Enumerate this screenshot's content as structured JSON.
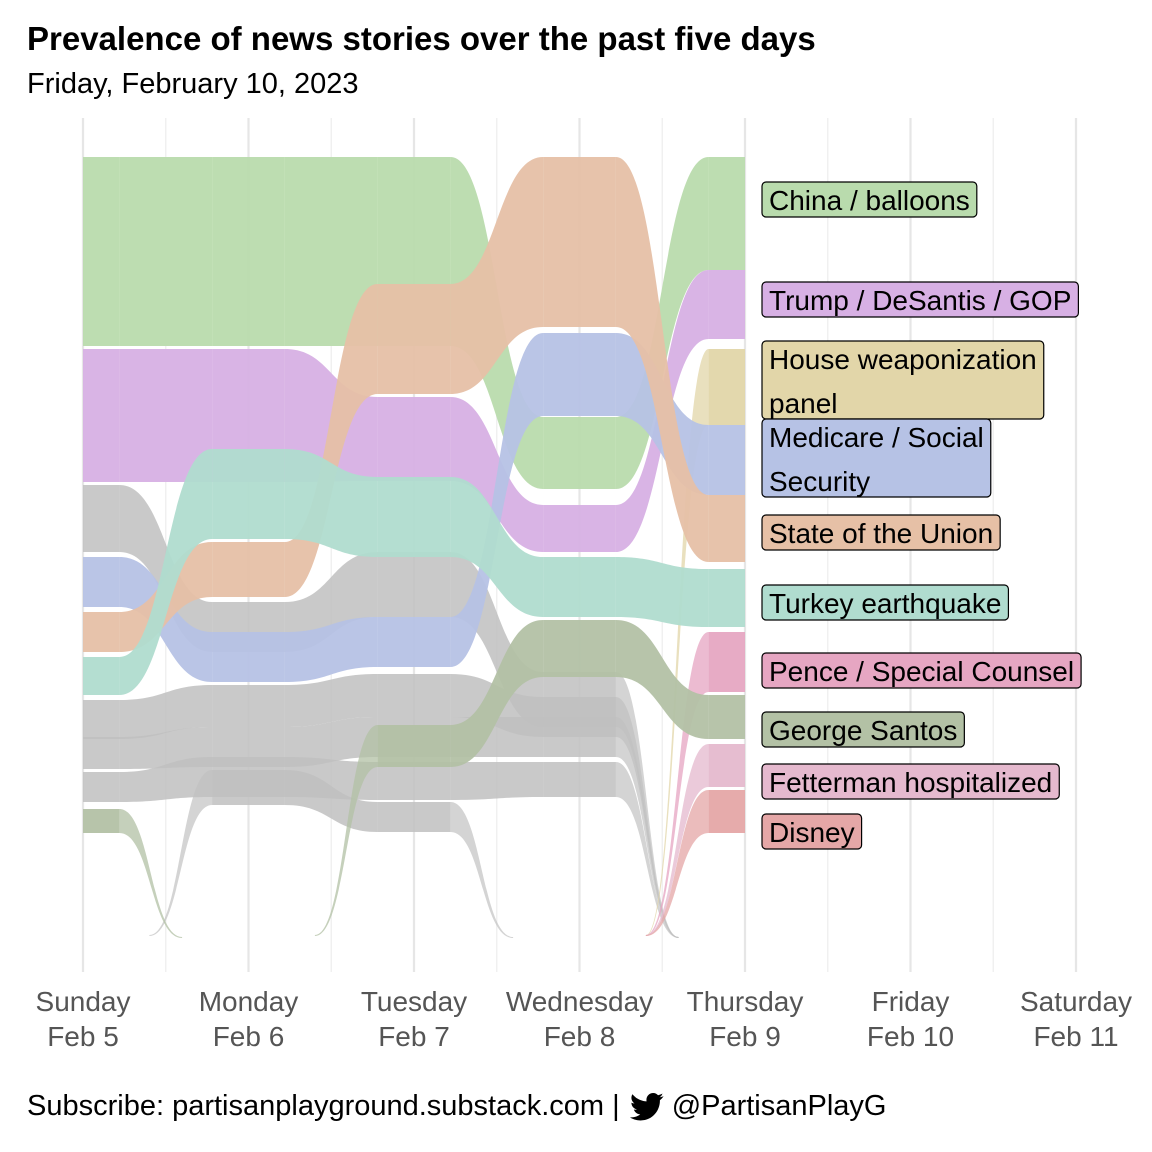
{
  "title": "Prevalence of news stories over the past five days",
  "subtitle": "Friday, February 10, 2023",
  "footer": {
    "subscribe_text": "Subscribe: partisanplayground.substack.com |",
    "twitter_icon": "twitter-bird-icon",
    "handle": "@PartisanPlayG"
  },
  "chart_data": {
    "type": "area",
    "subtype": "bump / ranked stream chart",
    "x_ticks": [
      {
        "day": "Sunday",
        "date": "Feb  5"
      },
      {
        "day": "Monday",
        "date": "Feb  6"
      },
      {
        "day": "Tuesday",
        "date": "Feb  7"
      },
      {
        "day": "Wednesday",
        "date": "Feb  8"
      },
      {
        "day": "Thursday",
        "date": "Feb  9"
      },
      {
        "day": "Friday",
        "date": "Feb 10"
      },
      {
        "day": "Saturday",
        "date": "Feb 11"
      }
    ],
    "data_days": [
      "Feb  5",
      "Feb  6",
      "Feb  7",
      "Feb  8",
      "Feb  9"
    ],
    "grid": true,
    "legend": "labels at right end of streams",
    "named_series": [
      {
        "name": "China / balloons",
        "color": "#b9dbad",
        "bands": [
          [
            0,
            189
          ],
          [
            0,
            189
          ],
          [
            0,
            189
          ],
          [
            260,
            332
          ],
          [
            0,
            113
          ]
        ]
      },
      {
        "name": "Trump / DeSantis / GOP",
        "color": "#d7b0e4",
        "bands": [
          [
            192,
            325
          ],
          [
            192,
            325
          ],
          [
            240,
            324
          ],
          [
            348,
            395
          ],
          [
            113,
            182
          ]
        ]
      },
      {
        "name": "House weaponization panel",
        "color": "#e2d6a9",
        "bands": [
          null,
          null,
          null,
          null,
          [
            192,
            268
          ]
        ]
      },
      {
        "name": "Medicare / Social Security",
        "color": "#b6c2e5",
        "bands": [
          [
            400,
            450
          ],
          [
            475,
            525
          ],
          [
            460,
            510
          ],
          [
            176,
            259
          ],
          [
            268,
            338
          ]
        ]
      },
      {
        "name": "State of the Union",
        "color": "#e6c0a6",
        "bands": [
          [
            455,
            495
          ],
          [
            385,
            440
          ],
          [
            127,
            237
          ],
          [
            0,
            170
          ],
          [
            338,
            405
          ]
        ]
      },
      {
        "name": "Turkey earthquake",
        "color": "#b0dccf",
        "bands": [
          [
            500,
            538
          ],
          [
            292,
            382
          ],
          [
            320,
            400
          ],
          [
            400,
            460
          ],
          [
            412,
            470
          ]
        ]
      },
      {
        "name": "Pence / Special Counsel",
        "color": "#e6a6c2",
        "bands": [
          null,
          null,
          null,
          null,
          [
            475,
            535
          ]
        ]
      },
      {
        "name": "George Santos",
        "color": "#b3c1a5",
        "bands": [
          [
            652,
            676
          ],
          [
            null
          ],
          [
            568,
            610
          ],
          [
            463,
            520
          ],
          [
            538,
            582
          ]
        ]
      },
      {
        "name": "Fetterman hospitalized",
        "color": "#e5b9ce",
        "bands": [
          null,
          null,
          null,
          null,
          [
            587,
            630
          ]
        ]
      },
      {
        "name": "Disney",
        "color": "#e5a7a7",
        "bands": [
          null,
          null,
          null,
          null,
          [
            633,
            676
          ]
        ]
      }
    ],
    "other_color": "#c0c0c0",
    "note": "band values are rank positions (0 = top) per day"
  }
}
